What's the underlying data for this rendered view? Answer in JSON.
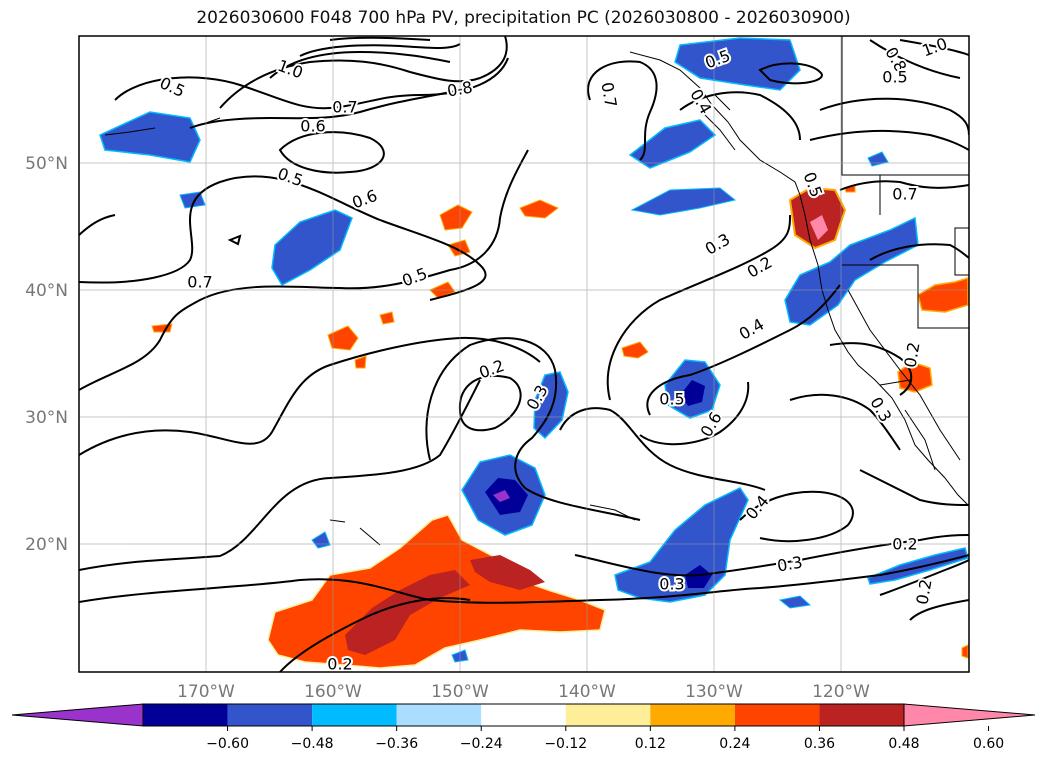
{
  "title": "2026030600 F048 700 hPa PV, precipitation PC (2026030800 - 2026030900)",
  "map": {
    "lon_labels": [
      "170°W",
      "160°W",
      "150°W",
      "140°W",
      "130°W",
      "120°W"
    ],
    "lat_labels": [
      "50°N",
      "40°N",
      "30°N",
      "20°N"
    ],
    "contour_labels": [
      "0.5",
      "1.0",
      "0.7",
      "0.6",
      "0.8",
      "0.7",
      "0.5",
      "0.4",
      "1.0",
      "0.8",
      "0.5",
      "0.5",
      "0.6",
      "0.7",
      "0.5",
      "0.3",
      "0.2",
      "0.7",
      "0.4",
      "0.2",
      "0.3",
      "0.5",
      "0.6",
      "0.3",
      "0.5",
      "0.4",
      "0.3",
      "0.3",
      "0.2",
      "0.2",
      "0.2",
      "0.2"
    ],
    "land_color": "#000000",
    "grid": true
  },
  "colorbar": {
    "ticks": [
      "−0.60",
      "−0.48",
      "−0.36",
      "−0.24",
      "−0.12",
      "0.12",
      "0.24",
      "0.36",
      "0.48",
      "0.60"
    ],
    "colors": [
      "#9933cc",
      "#000099",
      "#3355cc",
      "#00bbff",
      "#aaddff",
      "#ffffff",
      "#ffee99",
      "#ffaa00",
      "#ff4400",
      "#bb2222",
      "#ff88aa"
    ],
    "extend": "both"
  }
}
